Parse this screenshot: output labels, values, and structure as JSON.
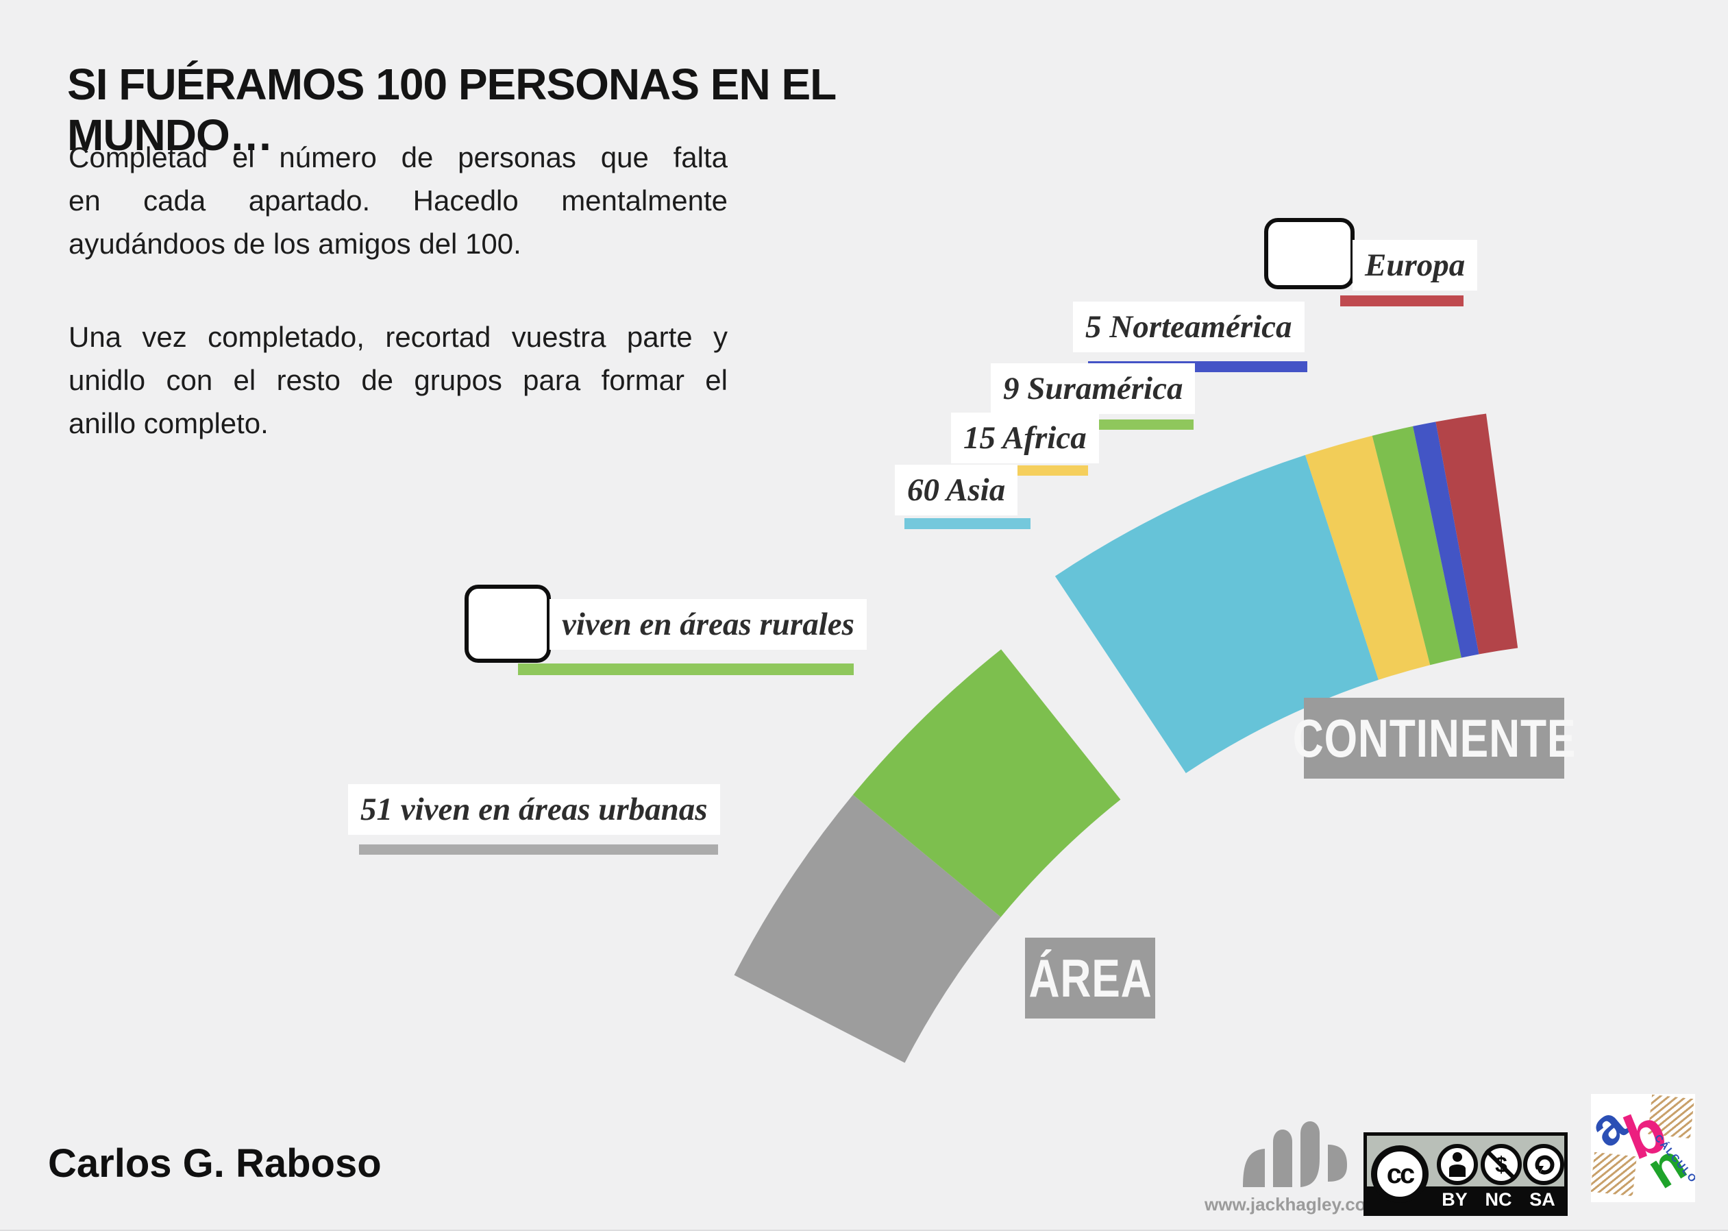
{
  "page": {
    "background": "#f0f0f1",
    "title": "SI FUÉRAMOS 100 PERSONAS EN EL MUNDO…",
    "intro_lines": [
      "Completad el número de personas que falta",
      "en cada apartado. Hacedlo mentalmente",
      "ayudándoos de los amigos del 100."
    ],
    "instructions_lines": [
      "Una vez completado, recortad vuestra parte y",
      "unidlo con el resto de grupos para formar el",
      "anillo completo."
    ],
    "author": "Carlos G. Raboso"
  },
  "continent_section": {
    "badge_label": "CONTINENTE",
    "labels": [
      {
        "text": "Europa",
        "blank": true,
        "underline_color": "#bf4a4f"
      },
      {
        "text": "5 Norteamérica",
        "blank": false,
        "underline_color": "#4453c6"
      },
      {
        "text": "9 Suramérica",
        "blank": false,
        "underline_color": "#8fc75c"
      },
      {
        "text": "15 Africa",
        "blank": false,
        "underline_color": "#f5cf5d"
      },
      {
        "text": "60 Asia",
        "blank": false,
        "underline_color": "#74c8dc"
      }
    ]
  },
  "area_section": {
    "badge_label": "ÁREA",
    "labels": [
      {
        "text": "viven en áreas rurales",
        "blank": true,
        "underline_color": "#8fc75c"
      },
      {
        "text": "51 viven en áreas urbanas",
        "blank": false,
        "underline_color": "#ababab"
      }
    ]
  },
  "chart_data": {
    "type": "pie",
    "title": "Si fuéramos 100 personas en el mundo",
    "note": "two detached ring segments of a 100-person ring; Europa and rurales values are blanks to fill in (11 and 49)",
    "legend_position": "staircase-labels-left-of-each-ring",
    "series": [
      {
        "name": "CONTINENTE",
        "slices": [
          {
            "label": "Asia",
            "value": 60,
            "color": "#66c3d8"
          },
          {
            "label": "Africa",
            "value": 15,
            "color": "#f2cd58"
          },
          {
            "label": "Suramérica",
            "value": 9,
            "color": "#7dbf4e"
          },
          {
            "label": "Norteamérica",
            "value": 5,
            "color": "#4355c5"
          },
          {
            "label": "Europa",
            "value": 11,
            "color": "#b34449"
          }
        ]
      },
      {
        "name": "ÁREA",
        "slices": [
          {
            "label": "viven en áreas urbanas",
            "value": 51,
            "color": "#9d9d9d"
          },
          {
            "label": "viven en áreas rurales",
            "value": 49,
            "color": "#7dbf4e"
          }
        ]
      }
    ]
  },
  "footer": {
    "credit": "www.jackhagley.com",
    "license": {
      "name": "Creative Commons BY-NC-SA",
      "labels": [
        "BY",
        "NC",
        "SA"
      ],
      "icons": [
        "cc-icon",
        "attribution-person-icon",
        "non-commercial-dollar-icon",
        "share-alike-arrow-icon"
      ],
      "cc_text": "cc"
    },
    "abn": {
      "letters": [
        "a",
        "b",
        "n"
      ],
      "caption": "CÁLCULO"
    }
  }
}
